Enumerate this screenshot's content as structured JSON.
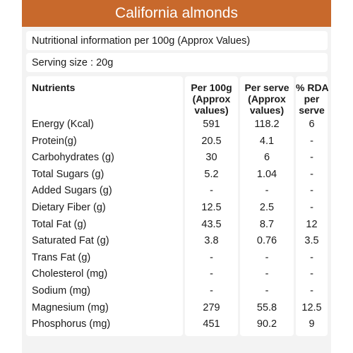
{
  "title": "California almonds",
  "info_line": "Nutritional information per 100g (Approx Values)",
  "serving_line": "Serving size : 20g",
  "headers": {
    "nutrients": "Nutrients",
    "per100_1": "Per 100g",
    "per100_2": "(Approx",
    "per100_3": "values)",
    "serve_1": "Per serve",
    "serve_2": "(Approx",
    "serve_3": "values)",
    "rda_1": "% RDA",
    "rda_2": "per",
    "rda_3": "serve"
  },
  "rows": [
    {
      "name": "Energy (Kcal)",
      "per100": "591",
      "serve": "118.2",
      "rda": "6"
    },
    {
      "name": "Protein(g)",
      "per100": "20.5",
      "serve": "4.1",
      "rda": "-"
    },
    {
      "name": "Carbohydrates (g)",
      "per100": "30",
      "serve": "6",
      "rda": "-"
    },
    {
      "name": "Total Sugars (g)",
      "per100": "5.2",
      "serve": "1.04",
      "rda": "-"
    },
    {
      "name": "Added Sugars (g)",
      "per100": "-",
      "serve": "-",
      "rda": "-"
    },
    {
      "name": "Dietary Fiber (g)",
      "per100": "12.5",
      "serve": "2.5",
      "rda": "-"
    },
    {
      "name": "Total Fat (g)",
      "per100": "43.5",
      "serve": "8.7",
      "rda": "12"
    },
    {
      "name": "Saturated Fat (g)",
      "per100": "3.8",
      "serve": "0.76",
      "rda": "3.5"
    },
    {
      "name": "Trans Fat (g)",
      "per100": "-",
      "serve": "-",
      "rda": "-"
    },
    {
      "name": "Cholesterol (mg)",
      "per100": "-",
      "serve": "-",
      "rda": "-"
    },
    {
      "name": "Sodium (mg)",
      "per100": "-",
      "serve": "-",
      "rda": "-"
    },
    {
      "name": "Magnesium (mg)",
      "per100": "279",
      "serve": "55.8",
      "rda": "12.5"
    },
    {
      "name": "Phosphorus (mg)",
      "per100": "451",
      "serve": "90.2",
      "rda": "9"
    }
  ],
  "colors": {
    "accent": "#c8692c",
    "panel": "#f3f3f3"
  }
}
